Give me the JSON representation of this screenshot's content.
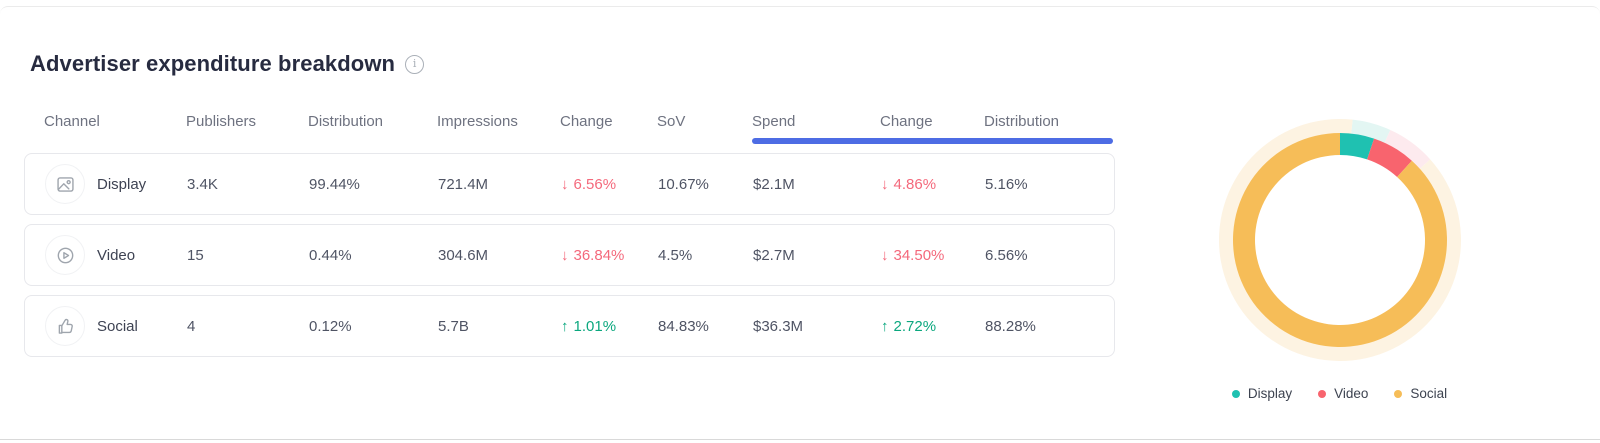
{
  "title": "Advertiser expenditure breakdown",
  "info_tooltip_glyph": "i",
  "colors": {
    "accent_blue": "#4d6ce4",
    "negative_red": "#f4697c",
    "positive_green": "#0ba77e"
  },
  "table": {
    "headers": [
      "Channel",
      "Publishers",
      "Distribution",
      "Impressions",
      "Change",
      "SoV",
      "Spend",
      "Change",
      "Distribution"
    ],
    "rows": [
      {
        "channel": "Display",
        "icon": "image-icon",
        "publishers": "3.4K",
        "distribution": "99.44%",
        "impressions": "721.4M",
        "impressions_change": {
          "dir": "down",
          "arrow": "↓",
          "value": "6.56%"
        },
        "sov": "10.67%",
        "spend": "$2.1M",
        "spend_change": {
          "dir": "down",
          "arrow": "↓",
          "value": "4.86%"
        },
        "spend_distribution": "5.16%"
      },
      {
        "channel": "Video",
        "icon": "play-circle-icon",
        "publishers": "15",
        "distribution": "0.44%",
        "impressions": "304.6M",
        "impressions_change": {
          "dir": "down",
          "arrow": "↓",
          "value": "36.84%"
        },
        "sov": "4.5%",
        "spend": "$2.7M",
        "spend_change": {
          "dir": "down",
          "arrow": "↓",
          "value": "34.50%"
        },
        "spend_distribution": "6.56%"
      },
      {
        "channel": "Social",
        "icon": "thumbs-up-icon",
        "publishers": "4",
        "distribution": "0.12%",
        "impressions": "5.7B",
        "impressions_change": {
          "dir": "up",
          "arrow": "↑",
          "value": "1.01%"
        },
        "sov": "84.83%",
        "spend": "$36.3M",
        "spend_change": {
          "dir": "up",
          "arrow": "↑",
          "value": "2.72%"
        },
        "spend_distribution": "88.28%"
      }
    ]
  },
  "chart_data": {
    "type": "pie",
    "subtype": "donut",
    "categories": [
      "Display",
      "Video",
      "Social"
    ],
    "values": [
      5.16,
      6.56,
      88.28
    ],
    "unit": "%",
    "colors": [
      "#1fc1b1",
      "#f8646e",
      "#f6bd58"
    ],
    "halo_colors": [
      "#e3f6f3",
      "#fdeaee",
      "#fdf3e2"
    ],
    "start_angle_deg": 0,
    "halo_offset_deg": 6,
    "legend_position": "bottom",
    "legend": [
      "Display",
      "Video",
      "Social"
    ]
  }
}
